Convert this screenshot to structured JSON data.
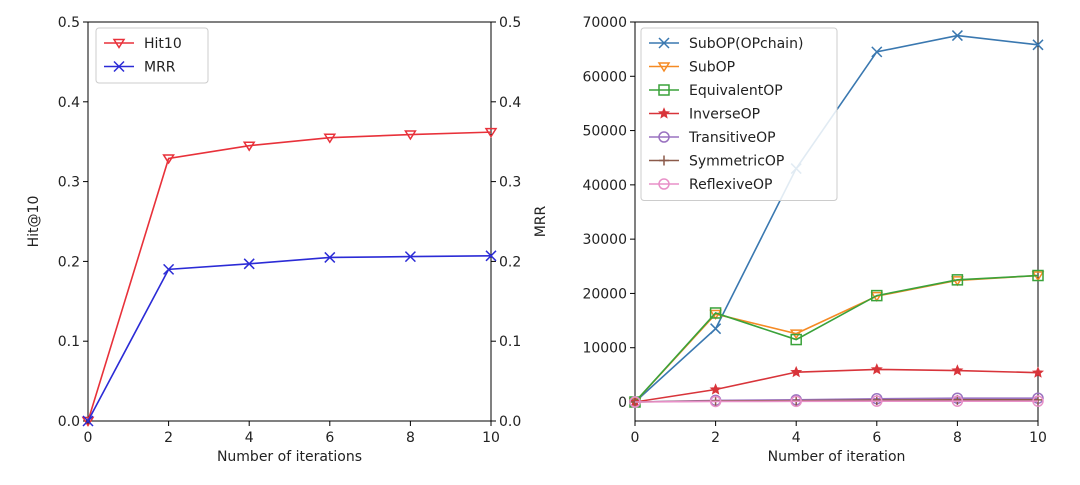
{
  "chart_data": [
    {
      "type": "line",
      "xlabel": "Number of iterations",
      "ylabel": "Hit@10",
      "y2label": "MRR",
      "xlim": [
        0,
        10
      ],
      "ylim": [
        0,
        0.5
      ],
      "y2lim": [
        0,
        0.5
      ],
      "xticks": [
        0,
        2,
        4,
        6,
        8,
        10
      ],
      "yticks": [
        0.0,
        0.1,
        0.2,
        0.3,
        0.4,
        0.5
      ],
      "ytick_labels": [
        "0.0",
        "0.1",
        "0.2",
        "0.3",
        "0.4",
        "0.5"
      ],
      "legend_position": "top-left",
      "grid": false,
      "x": [
        0,
        2,
        4,
        6,
        8,
        10
      ],
      "series": [
        {
          "name": "Hit10",
          "color": "#e8313a",
          "marker": "triangle-down",
          "values": [
            0.0,
            0.329,
            0.345,
            0.355,
            0.359,
            0.362
          ]
        },
        {
          "name": "MRR",
          "color": "#2b2bd6",
          "marker": "x",
          "values": [
            0.0,
            0.19,
            0.197,
            0.205,
            0.206,
            0.207
          ]
        }
      ]
    },
    {
      "type": "line",
      "xlabel": "Number of iteration",
      "ylabel": "",
      "xlim": [
        0,
        10
      ],
      "ylim": [
        -3500,
        70000
      ],
      "xticks": [
        0,
        2,
        4,
        6,
        8,
        10
      ],
      "yticks": [
        0,
        10000,
        20000,
        30000,
        40000,
        50000,
        60000,
        70000
      ],
      "legend_position": "top-left",
      "grid": false,
      "x": [
        0,
        2,
        4,
        6,
        8,
        10
      ],
      "series": [
        {
          "name": "SubOP(OPchain)",
          "color": "#3a78b0",
          "marker": "x",
          "values": [
            0,
            13500,
            43000,
            64500,
            67500,
            65800
          ]
        },
        {
          "name": "SubOP",
          "color": "#f58a24",
          "marker": "triangle-down",
          "values": [
            0,
            16200,
            12600,
            19500,
            22400,
            23300
          ]
        },
        {
          "name": "EquivalentOP",
          "color": "#3aa23a",
          "marker": "square",
          "values": [
            0,
            16400,
            11500,
            19600,
            22500,
            23300
          ]
        },
        {
          "name": "InverseOP",
          "color": "#d8343a",
          "marker": "star",
          "values": [
            0,
            2300,
            5500,
            6000,
            5800,
            5400
          ]
        },
        {
          "name": "TransitiveOP",
          "color": "#9a72c0",
          "marker": "circle",
          "values": [
            0,
            300,
            400,
            600,
            700,
            700
          ]
        },
        {
          "name": "SymmetricOP",
          "color": "#8b5a4a",
          "marker": "plus",
          "values": [
            0,
            200,
            250,
            350,
            400,
            400
          ]
        },
        {
          "name": "ReflexiveOP",
          "color": "#e890c8",
          "marker": "circle",
          "values": [
            0,
            100,
            120,
            150,
            150,
            150
          ]
        }
      ]
    }
  ]
}
